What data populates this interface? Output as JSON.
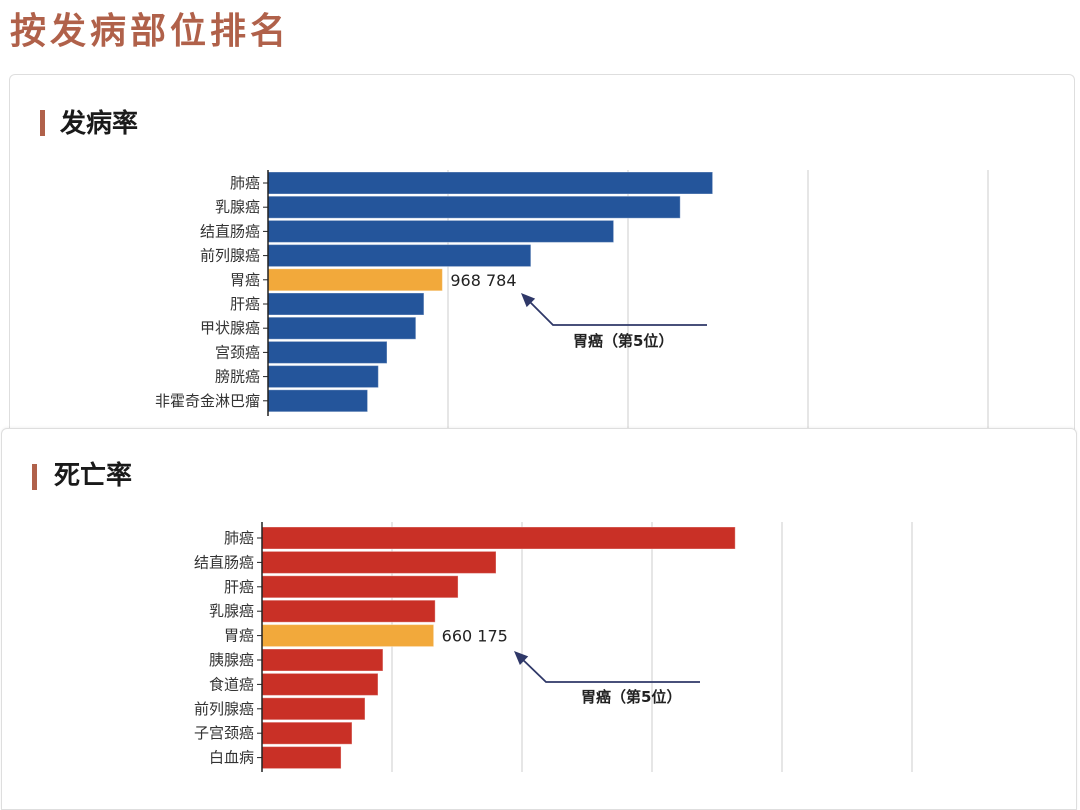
{
  "page": {
    "title": "按发病部位排名"
  },
  "colors": {
    "title": "#b0614a",
    "incidence_bar": "#24559b",
    "mortality_bar": "#c93026",
    "highlight_bar": "#f2a93b",
    "annotation": "#2f3868",
    "grid": "#d9d9d9"
  },
  "sections": [
    {
      "title": "发病率",
      "annotation": "胃癌（第5位）",
      "highlight_value_label": "968 784"
    },
    {
      "title": "死亡率",
      "annotation": "胃癌（第5位）",
      "highlight_value_label": "660 175"
    }
  ],
  "chart_data": [
    {
      "type": "bar",
      "orientation": "horizontal",
      "title": "发病率",
      "categories": [
        "肺癌",
        "乳腺癌",
        "结直肠癌",
        "前列腺癌",
        "胃癌",
        "肝癌",
        "甲状腺癌",
        "宫颈癌",
        "膀胱癌",
        "非霍奇金淋巴瘤"
      ],
      "values": [
        2470000,
        2290000,
        1920000,
        1460000,
        968784,
        866000,
        821000,
        661000,
        613000,
        553000
      ],
      "highlight": {
        "category": "胃癌",
        "value_label": "968 784",
        "annotation": "胃癌（第5位）"
      },
      "xlabel": "",
      "ylabel": "",
      "xlim": [
        0,
        4000000
      ],
      "grid_step": 1000000,
      "grid": true,
      "tick_labels_shown": false
    },
    {
      "type": "bar",
      "orientation": "horizontal",
      "title": "死亡率",
      "categories": [
        "肺癌",
        "结直肠癌",
        "肝癌",
        "乳腺癌",
        "胃癌",
        "胰腺癌",
        "食道癌",
        "前列腺癌",
        "子宫颈癌",
        "白血病"
      ],
      "values": [
        1820000,
        900000,
        754000,
        666000,
        660175,
        465000,
        446000,
        396000,
        346000,
        304000
      ],
      "highlight": {
        "category": "胃癌",
        "value_label": "660 175",
        "annotation": "胃癌（第5位）"
      },
      "xlabel": "",
      "ylabel": "",
      "xlim": [
        0,
        2500000
      ],
      "grid_step": 500000,
      "grid": true,
      "tick_labels_shown": false
    }
  ]
}
